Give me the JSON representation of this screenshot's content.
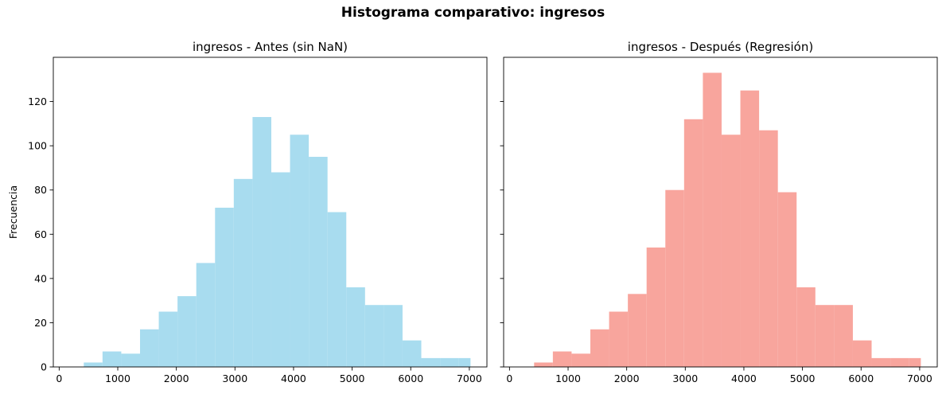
{
  "figure": {
    "suptitle": "Histograma comparativo: ingresos"
  },
  "chart_data": [
    {
      "type": "bar",
      "title": "ingresos - Antes (sin NaN)",
      "xlabel": "",
      "ylabel": "Frecuencia",
      "xlim": [
        -100,
        7300
      ],
      "ylim": [
        0,
        140
      ],
      "xticks": [
        0,
        1000,
        2000,
        3000,
        4000,
        5000,
        6000,
        7000
      ],
      "yticks": [
        0,
        20,
        40,
        60,
        80,
        100,
        120
      ],
      "bin_edges": [
        420,
        740,
        1060,
        1380,
        1700,
        2020,
        2340,
        2660,
        2980,
        3300,
        3620,
        3940,
        4260,
        4580,
        4900,
        5220,
        5540,
        5860,
        6180,
        6500,
        6820,
        7020
      ],
      "values": [
        2,
        7,
        6,
        17,
        25,
        32,
        47,
        72,
        85,
        113,
        88,
        105,
        95,
        70,
        36,
        28,
        28,
        12,
        4,
        4,
        4
      ],
      "color": "#a8dcef",
      "grid": false
    },
    {
      "type": "bar",
      "title": "ingresos - Después (Regresión)",
      "xlabel": "",
      "ylabel": "",
      "xlim": [
        -100,
        7300
      ],
      "ylim": [
        0,
        140
      ],
      "xticks": [
        0,
        1000,
        2000,
        3000,
        4000,
        5000,
        6000,
        7000
      ],
      "yticks": [
        0,
        20,
        40,
        60,
        80,
        100,
        120
      ],
      "bin_edges": [
        420,
        740,
        1060,
        1380,
        1700,
        2020,
        2340,
        2660,
        2980,
        3300,
        3620,
        3940,
        4260,
        4580,
        4900,
        5220,
        5540,
        5860,
        6180,
        6500,
        6820,
        7020
      ],
      "values": [
        2,
        7,
        6,
        17,
        25,
        33,
        54,
        80,
        112,
        133,
        105,
        125,
        107,
        79,
        36,
        28,
        28,
        12,
        4,
        4,
        4
      ],
      "color": "#f8a59d",
      "grid": false
    }
  ]
}
